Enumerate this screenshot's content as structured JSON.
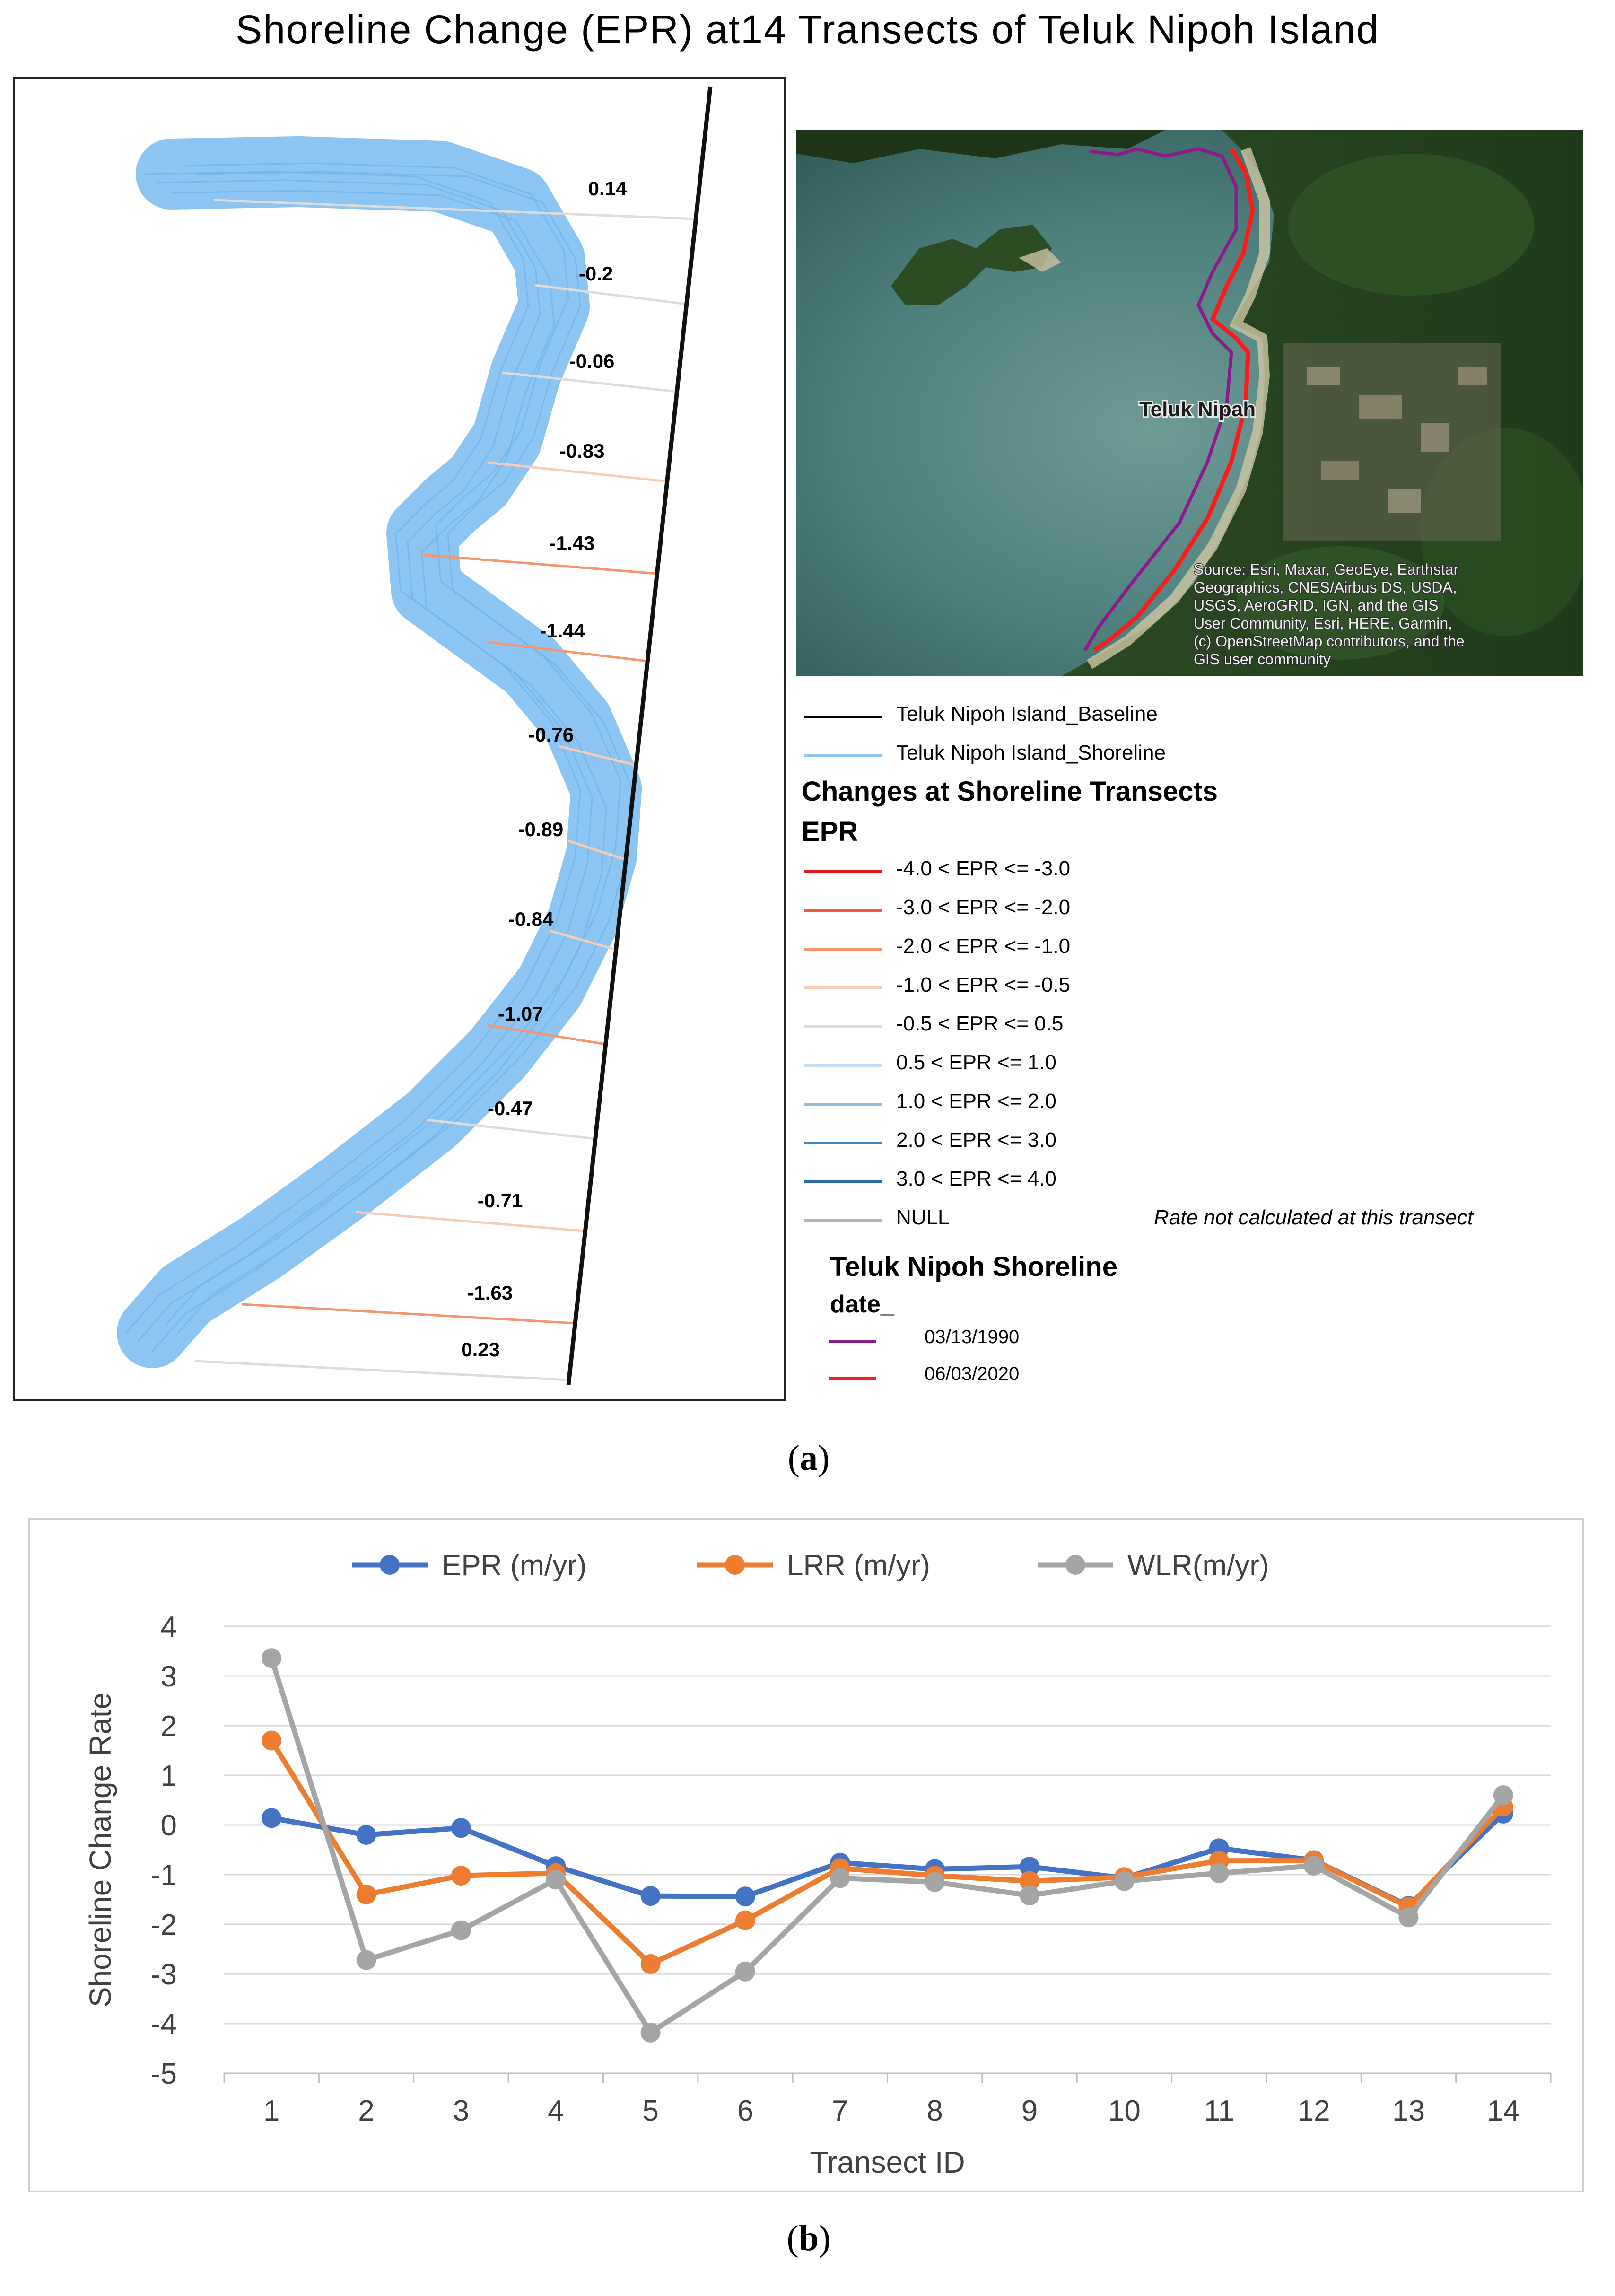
{
  "title": "Shoreline Change (EPR) at14 Transects of Teluk Nipoh Island",
  "panel_a": {
    "label_open": "(",
    "label_letter": "a",
    "label_close": ")",
    "transect_labels": [
      "0.14",
      "-0.2",
      "-0.06",
      "-0.83",
      "-1.43",
      "-1.44",
      "-0.76",
      "-0.89",
      "-0.84",
      "-1.07",
      "-0.47",
      "-0.71",
      "-1.63",
      "0.23"
    ],
    "satellite": {
      "place_label": "Teluk Nipah",
      "attribution": [
        "Source: Esri, Maxar, GeoEye, Earthstar",
        "Geographics, CNES/Airbus DS, USDA,",
        "USGS, AeroGRID, IGN, and the GIS",
        "User Community, Esri, HERE, Garmin,",
        "(c) OpenStreetMap contributors, and the",
        "GIS user community"
      ]
    },
    "legend": {
      "baseline": "Teluk Nipoh Island_Baseline",
      "shoreline": "Teluk Nipoh Island_Shoreline",
      "changes_heading": "Changes at Shoreline Transects",
      "epr_heading": "EPR",
      "classes": [
        {
          "label": "-4.0 < EPR <= -3.0",
          "color": "#e31a1c"
        },
        {
          "label": "-3.0 < EPR <= -2.0",
          "color": "#ef5a3c"
        },
        {
          "label": "-2.0 < EPR <= -1.0",
          "color": "#f4956e"
        },
        {
          "label": "-1.0 < EPR <= -0.5",
          "color": "#f9cdb4"
        },
        {
          "label": "-0.5 < EPR <= 0.5",
          "color": "#dcdcdc"
        },
        {
          "label": "0.5 < EPR <= 1.0",
          "color": "#c6def0"
        },
        {
          "label": "1.0 < EPR <= 2.0",
          "color": "#8fbee0"
        },
        {
          "label": "2.0 < EPR <= 3.0",
          "color": "#3d85c0"
        },
        {
          "label": "3.0 < EPR <= 4.0",
          "color": "#2a6aa8"
        },
        {
          "label": "NULL",
          "color": "#b4b4b4"
        }
      ],
      "null_note": "Rate not calculated at this transect",
      "shoreline_heading": "Teluk Nipoh Shoreline",
      "date_heading": "date_",
      "dates": [
        {
          "label": "03/13/1990",
          "color": "#8b1a8b"
        },
        {
          "label": "06/03/2020",
          "color": "#ff1a1a"
        }
      ]
    }
  },
  "panel_b": {
    "label_open": "(",
    "label_letter": "b",
    "label_close": ")"
  },
  "chart_data": {
    "type": "line",
    "title": "",
    "xlabel": "Transect ID",
    "ylabel": "Shoreline Change Rate",
    "categories": [
      "1",
      "2",
      "3",
      "4",
      "5",
      "6",
      "7",
      "8",
      "9",
      "10",
      "11",
      "12",
      "13",
      "14"
    ],
    "ylim": [
      -5,
      4
    ],
    "yticks": [
      "4",
      "3",
      "2",
      "1",
      "0",
      "-1",
      "-2",
      "-3",
      "-4",
      "-5"
    ],
    "grid": true,
    "legend_position": "top",
    "series": [
      {
        "name": "EPR (m/yr)",
        "color": "#4472c4",
        "values": [
          0.14,
          -0.2,
          -0.06,
          -0.83,
          -1.43,
          -1.44,
          -0.76,
          -0.89,
          -0.84,
          -1.07,
          -0.47,
          -0.71,
          -1.63,
          0.23
        ]
      },
      {
        "name": "LRR (m/yr)",
        "color": "#ed7d31",
        "values": [
          1.7,
          -1.4,
          -1.02,
          -0.97,
          -2.8,
          -1.92,
          -0.87,
          -1.02,
          -1.13,
          -1.05,
          -0.72,
          -0.72,
          -1.65,
          0.37
        ]
      },
      {
        "name": "WLR(m/yr)",
        "color": "#a5a5a5",
        "values": [
          3.36,
          -2.72,
          -2.12,
          -1.1,
          -4.18,
          -2.95,
          -1.07,
          -1.15,
          -1.42,
          -1.13,
          -0.97,
          -0.82,
          -1.86,
          0.6
        ]
      }
    ]
  }
}
